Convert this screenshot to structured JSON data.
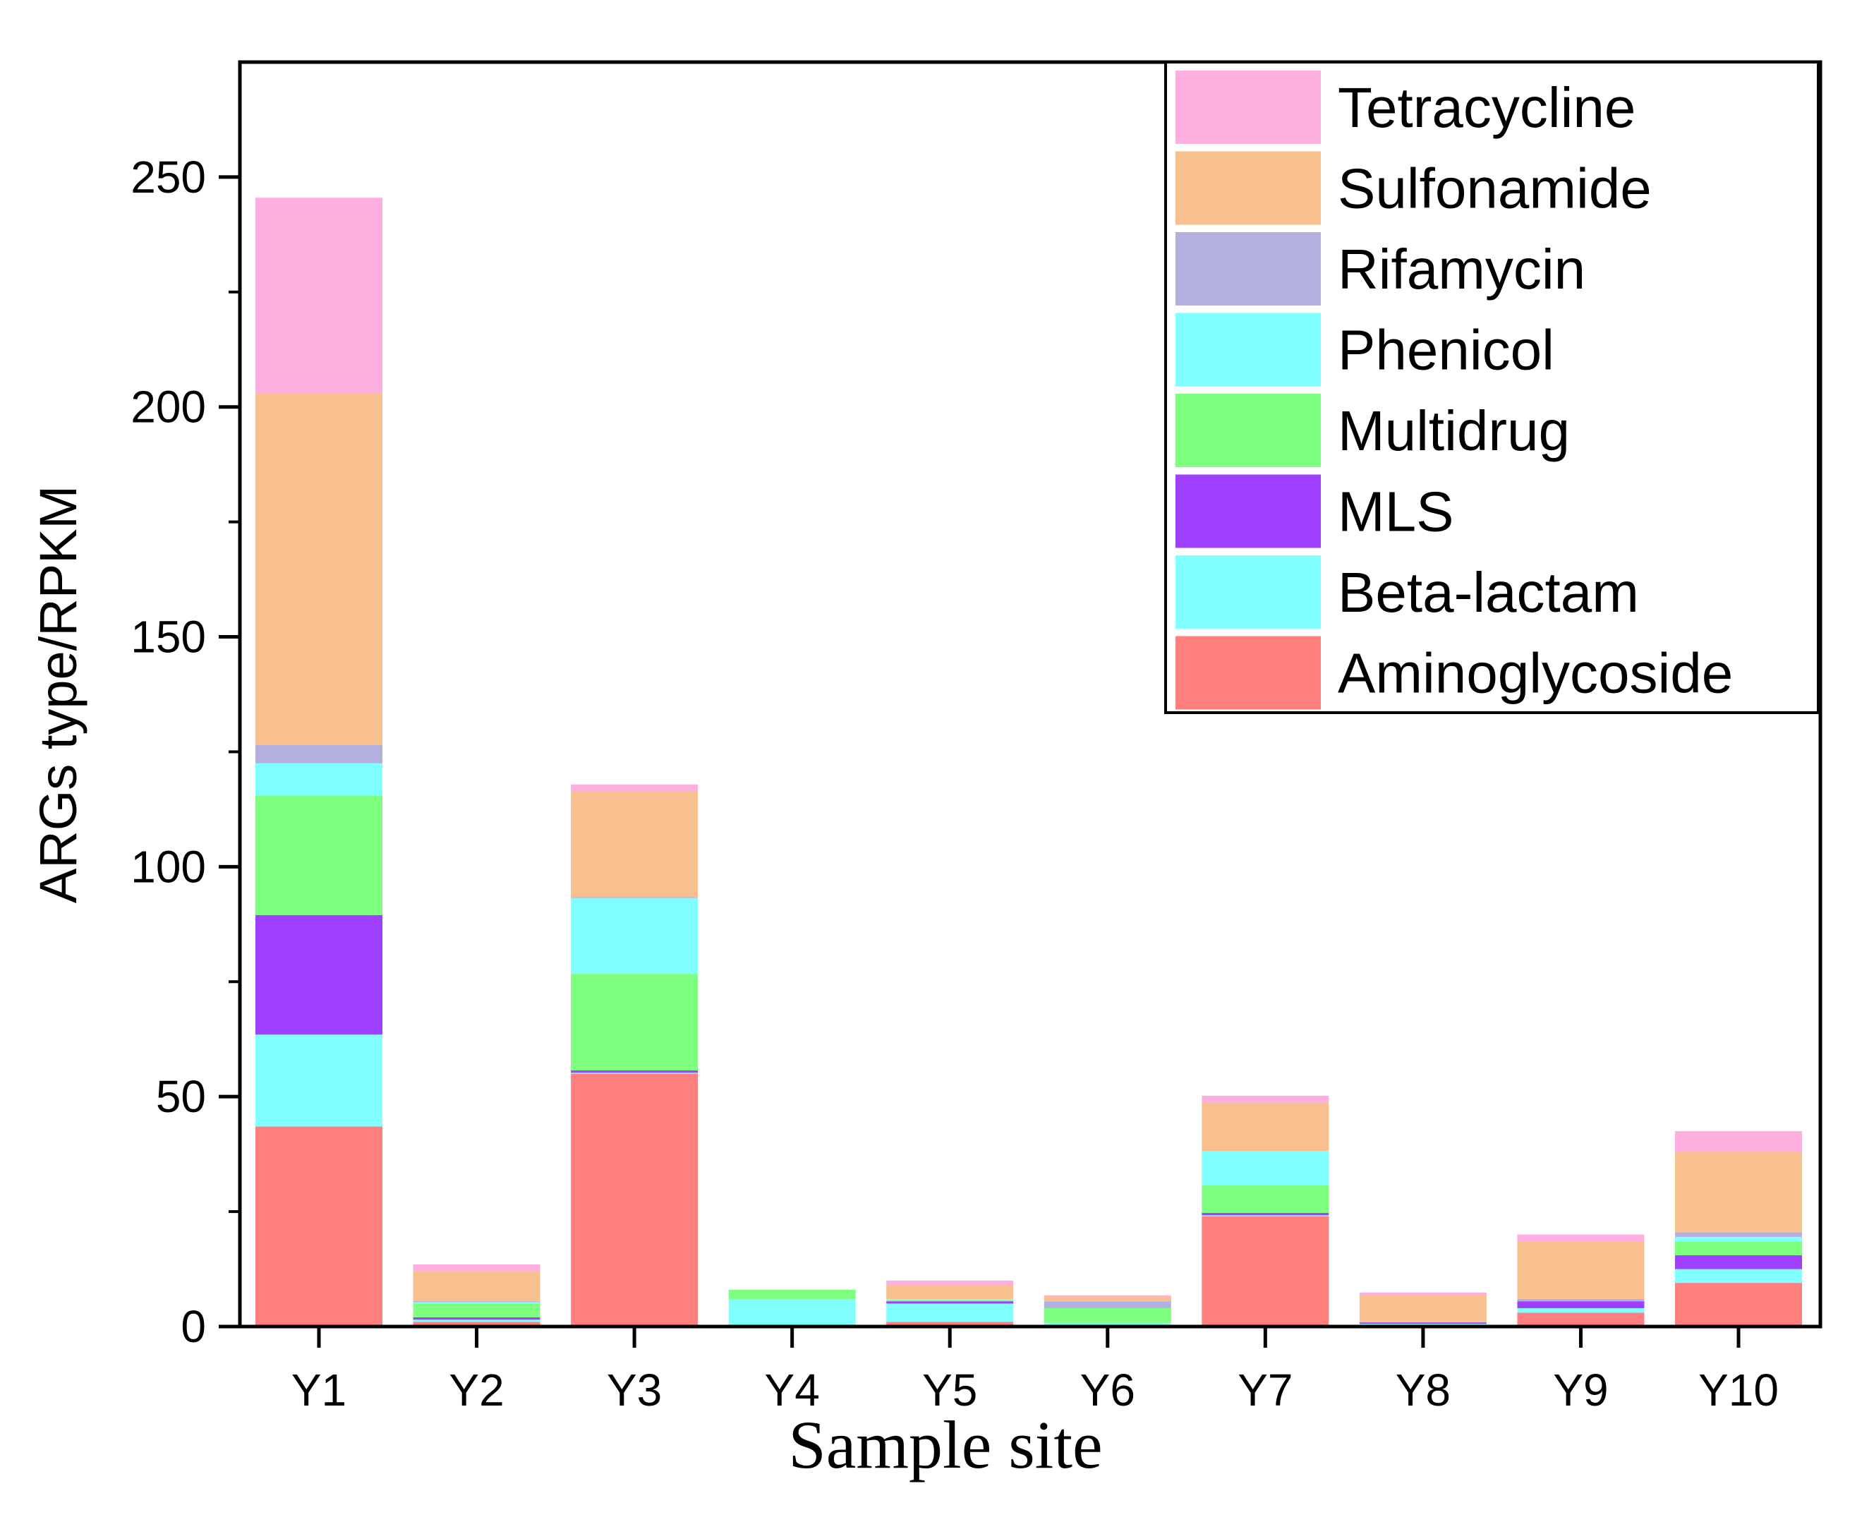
{
  "chart_data": {
    "type": "bar",
    "stacked": true,
    "title": "",
    "xlabel": "Sample site",
    "ylabel": "ARGs type/RPKM",
    "ylim": [
      0,
      275
    ],
    "yticks": [
      0,
      50,
      100,
      150,
      200,
      250
    ],
    "categories": [
      "Y1",
      "Y2",
      "Y3",
      "Y4",
      "Y5",
      "Y6",
      "Y7",
      "Y8",
      "Y9",
      "Y10"
    ],
    "legend_position": "top-right",
    "series": [
      {
        "name": "Aminoglycoside",
        "color": "#FF7F7F",
        "values": [
          43.5,
          1.0,
          55.0,
          0.2,
          1.0,
          0.3,
          24.0,
          0.4,
          3.0,
          9.5
        ]
      },
      {
        "name": "Beta-lactam",
        "color": "#7FFFFF",
        "values": [
          20.0,
          0.5,
          0.2,
          5.8,
          4.0,
          0.5,
          0.2,
          0.2,
          1.0,
          3.0
        ]
      },
      {
        "name": "MLS",
        "color": "#9F3FFF",
        "values": [
          26.0,
          0.5,
          0.5,
          0.0,
          0.5,
          0.0,
          0.5,
          0.3,
          1.5,
          3.0
        ]
      },
      {
        "name": "Multidrug",
        "color": "#7FFF7F",
        "values": [
          26.0,
          3.0,
          21.0,
          2.0,
          0.3,
          3.2,
          6.0,
          0.0,
          0.0,
          3.0
        ]
      },
      {
        "name": "Phenicol",
        "color": "#7FFFFF",
        "values": [
          7.0,
          0.3,
          16.5,
          0.0,
          0.2,
          0.0,
          7.5,
          0.0,
          0.0,
          1.0
        ]
      },
      {
        "name": "Rifamycin",
        "color": "#B3AFDF",
        "values": [
          4.0,
          0.2,
          0.2,
          0.0,
          0.0,
          1.5,
          0.0,
          0.0,
          0.5,
          1.0
        ]
      },
      {
        "name": "Sulfonamide",
        "color": "#F8BF8F",
        "values": [
          76.5,
          6.5,
          23.0,
          0.0,
          3.0,
          1.0,
          10.5,
          6.0,
          12.5,
          17.5
        ]
      },
      {
        "name": "Tetracycline",
        "color": "#FFAFDF",
        "values": [
          42.5,
          1.5,
          1.5,
          0.0,
          1.0,
          0.3,
          1.5,
          0.5,
          1.5,
          4.5
        ]
      }
    ]
  }
}
